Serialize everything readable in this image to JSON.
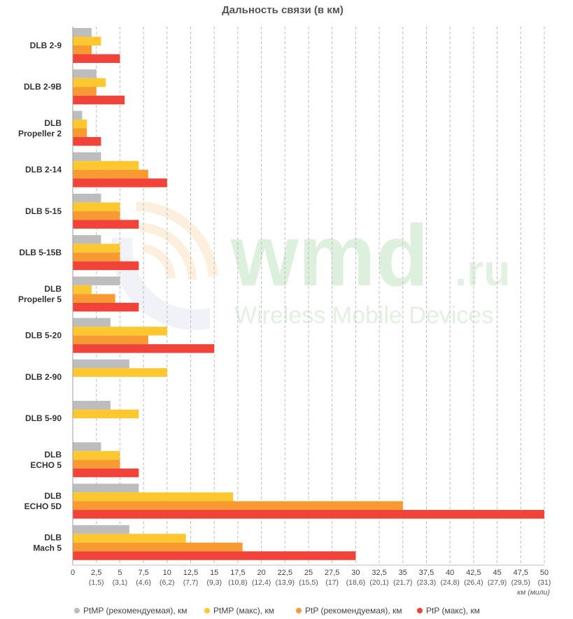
{
  "chart_data": {
    "type": "bar",
    "orientation": "horizontal",
    "title": "Дальность связи (в км)",
    "categories": [
      [
        "DLB 2-9"
      ],
      [
        "DLB 2-9B"
      ],
      [
        "DLB",
        "Propeller 2"
      ],
      [
        "DLB 2-14"
      ],
      [
        "DLB 5-15"
      ],
      [
        "DLB 5-15B"
      ],
      [
        "DLB",
        "Propeller 5"
      ],
      [
        "DLB 5-20"
      ],
      [
        "DLB 2-90"
      ],
      [
        "DLB 5-90"
      ],
      [
        "DLB",
        "ECHO 5"
      ],
      [
        "DLB",
        "ECHO 5D"
      ],
      [
        "DLB",
        "Mach 5"
      ]
    ],
    "series": [
      {
        "name": "PtMP (рекомендуемая), км",
        "color": "#bdbdbd",
        "values": [
          2,
          2.5,
          1,
          3,
          3,
          3,
          5,
          4,
          6,
          4,
          3,
          7,
          6
        ]
      },
      {
        "name": "PtMP (макс), км",
        "color": "#fdc82f",
        "values": [
          3,
          3.5,
          1.5,
          7,
          5,
          5,
          2,
          10,
          10,
          7,
          5,
          17,
          12
        ]
      },
      {
        "name": "PtP (рекомендуемая), км",
        "color": "#f79a32",
        "values": [
          2,
          2.5,
          1.5,
          8,
          5,
          5,
          4.5,
          8,
          null,
          null,
          5,
          35,
          18
        ]
      },
      {
        "name": "PtP (макс), км",
        "color": "#f2433a",
        "values": [
          5,
          5.5,
          3,
          10,
          7,
          7,
          7,
          15,
          null,
          null,
          7,
          50,
          30
        ]
      }
    ],
    "x_ticks": [
      "0",
      "2,5",
      "5",
      "7,5",
      "10",
      "12,5",
      "15",
      "17,5",
      "20",
      "22,5",
      "25",
      "27,5",
      "30",
      "32,5",
      "35",
      "37,5",
      "40",
      "42,5",
      "45",
      "47,5",
      "50"
    ],
    "x_ticks_miles": [
      "",
      "(1,5)",
      "(3,1)",
      "(4,6)",
      "(6,2)",
      "(7,7)",
      "(9,3)",
      "(10,8)",
      "(12,4)",
      "(13,9)",
      "(15,5)",
      "(17)",
      "(18,6)",
      "(20,1)",
      "(21,7)",
      "(23,3)",
      "(24,8)",
      "(26,4)",
      "(27,9)",
      "(29,5)",
      "(31)"
    ],
    "xlim": [
      0,
      50
    ],
    "xlabel": "км (мили)",
    "grid": "vertical dashed",
    "legend_position": "bottom"
  },
  "watermark": {
    "logo_text": "wmd",
    "logo_suffix": ".ru",
    "tagline": "Wireless Mobile Devices"
  }
}
